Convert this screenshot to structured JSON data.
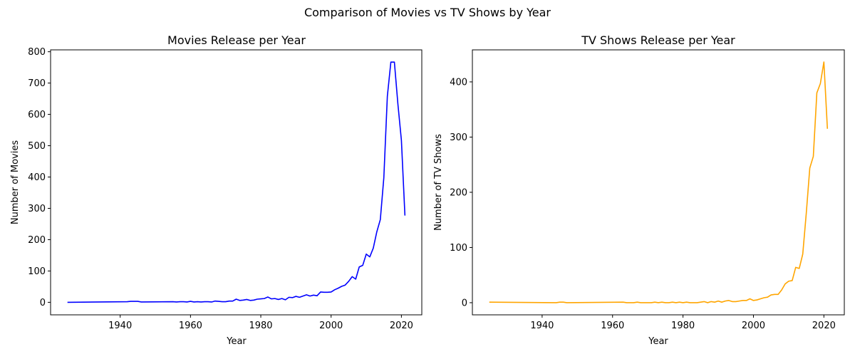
{
  "figure": {
    "suptitle": "Comparison of Movies vs TV Shows by Year"
  },
  "chart_data": [
    {
      "type": "line",
      "title": "Movies Release per Year",
      "xlabel": "Year",
      "ylabel": "Number of Movies",
      "xlim": [
        1920.2,
        2025.8
      ],
      "ylim": [
        -40,
        806
      ],
      "xticks": [
        1940,
        1960,
        1980,
        2000,
        2020
      ],
      "yticks": [
        0,
        100,
        200,
        300,
        400,
        500,
        600,
        700,
        800
      ],
      "grid": false,
      "color": "#0000ff",
      "x": [
        1925,
        1942,
        1943,
        1945,
        1946,
        1955,
        1956,
        1957,
        1958,
        1959,
        1960,
        1961,
        1962,
        1963,
        1964,
        1965,
        1966,
        1967,
        1968,
        1969,
        1970,
        1971,
        1972,
        1973,
        1974,
        1975,
        1976,
        1977,
        1978,
        1979,
        1980,
        1981,
        1982,
        1983,
        1984,
        1985,
        1986,
        1987,
        1988,
        1989,
        1990,
        1991,
        1992,
        1993,
        1994,
        1995,
        1996,
        1997,
        1998,
        1999,
        2000,
        2001,
        2002,
        2003,
        2004,
        2005,
        2006,
        2007,
        2008,
        2009,
        2010,
        2011,
        2012,
        2013,
        2014,
        2015,
        2016,
        2017,
        2018,
        2019,
        2020,
        2021
      ],
      "values": [
        0,
        2,
        3,
        3,
        1,
        2,
        1,
        2,
        2,
        1,
        3,
        1,
        2,
        1,
        2,
        2,
        1,
        4,
        3,
        2,
        2,
        4,
        4,
        10,
        6,
        7,
        9,
        6,
        7,
        10,
        11,
        12,
        17,
        11,
        12,
        9,
        12,
        8,
        16,
        15,
        19,
        16,
        20,
        24,
        20,
        23,
        21,
        33,
        32,
        32,
        33,
        40,
        45,
        51,
        55,
        67,
        82,
        74,
        113,
        118,
        154,
        145,
        173,
        225,
        264,
        398,
        658,
        767,
        767,
        633,
        517,
        277
      ]
    },
    {
      "type": "line",
      "title": "TV Shows Release per Year",
      "xlabel": "Year",
      "ylabel": "Number of TV Shows",
      "xlim": [
        1920.2,
        2025.8
      ],
      "ylim": [
        -22,
        458
      ],
      "xticks": [
        1940,
        1960,
        1980,
        2000,
        2020
      ],
      "yticks": [
        0,
        100,
        200,
        300,
        400
      ],
      "grid": false,
      "color": "#ffa500",
      "x": [
        1925,
        1944,
        1945,
        1946,
        1947,
        1963,
        1964,
        1965,
        1966,
        1967,
        1968,
        1969,
        1970,
        1971,
        1972,
        1973,
        1974,
        1975,
        1976,
        1977,
        1978,
        1979,
        1980,
        1981,
        1982,
        1983,
        1984,
        1985,
        1986,
        1987,
        1988,
        1989,
        1990,
        1991,
        1992,
        1993,
        1994,
        1995,
        1996,
        1997,
        1998,
        1999,
        2000,
        2001,
        2002,
        2003,
        2004,
        2005,
        2006,
        2007,
        2008,
        2009,
        2010,
        2011,
        2012,
        2013,
        2014,
        2015,
        2016,
        2017,
        2018,
        2019,
        2020,
        2021
      ],
      "values": [
        1,
        0,
        1,
        1,
        0,
        1,
        0,
        0,
        0,
        1,
        0,
        0,
        0,
        0,
        1,
        0,
        1,
        0,
        0,
        1,
        0,
        1,
        0,
        1,
        0,
        0,
        0,
        1,
        2,
        0,
        2,
        1,
        3,
        1,
        3,
        4,
        2,
        2,
        3,
        4,
        4,
        7,
        4,
        5,
        7,
        9,
        10,
        14,
        15,
        15,
        23,
        34,
        39,
        40,
        64,
        62,
        88,
        162,
        244,
        265,
        380,
        397,
        436,
        315
      ]
    }
  ]
}
